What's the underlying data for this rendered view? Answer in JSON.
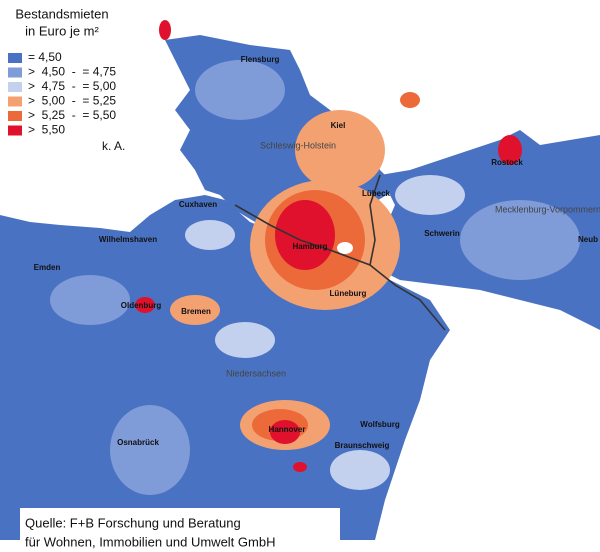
{
  "legend": {
    "title": [
      "Bestandsmieten",
      "in Euro je m²"
    ],
    "items": [
      {
        "color": "#4a72c2",
        "label": "= 4,50"
      },
      {
        "color": "#7f9bd8",
        "label": ">  4,50  -  = 4,75"
      },
      {
        "color": "#c3d1ef",
        "label": ">  4,75  -  = 5,00"
      },
      {
        "color": "#f4a172",
        "label": ">  5,00  -  = 5,25"
      },
      {
        "color": "#ec693a",
        "label": ">  5,25  -  = 5,50"
      },
      {
        "color": "#e0112c",
        "label": ">  5,50"
      },
      {
        "color": "#ffffff",
        "label": "k. A."
      }
    ]
  },
  "labels": [
    "Flensburg",
    "Kiel",
    "Schleswig-Holstein",
    "Rostock",
    "Lübeck",
    "Mecklenburg-Vorpommern",
    "Cuxhaven",
    "Wilhelmshaven",
    "Schwerin",
    "Neub",
    "Emden",
    "Hamburg",
    "Lüneburg",
    "Oldenburg",
    "Bremen",
    "Niedersachsen",
    "Hannover",
    "Wolfsburg",
    "Braunschweig",
    "Osnabrück"
  ],
  "source": [
    "Quelle: F+B Forschung und Beratung",
    "für Wohnen, Immobilien und Umwelt GmbH"
  ]
}
